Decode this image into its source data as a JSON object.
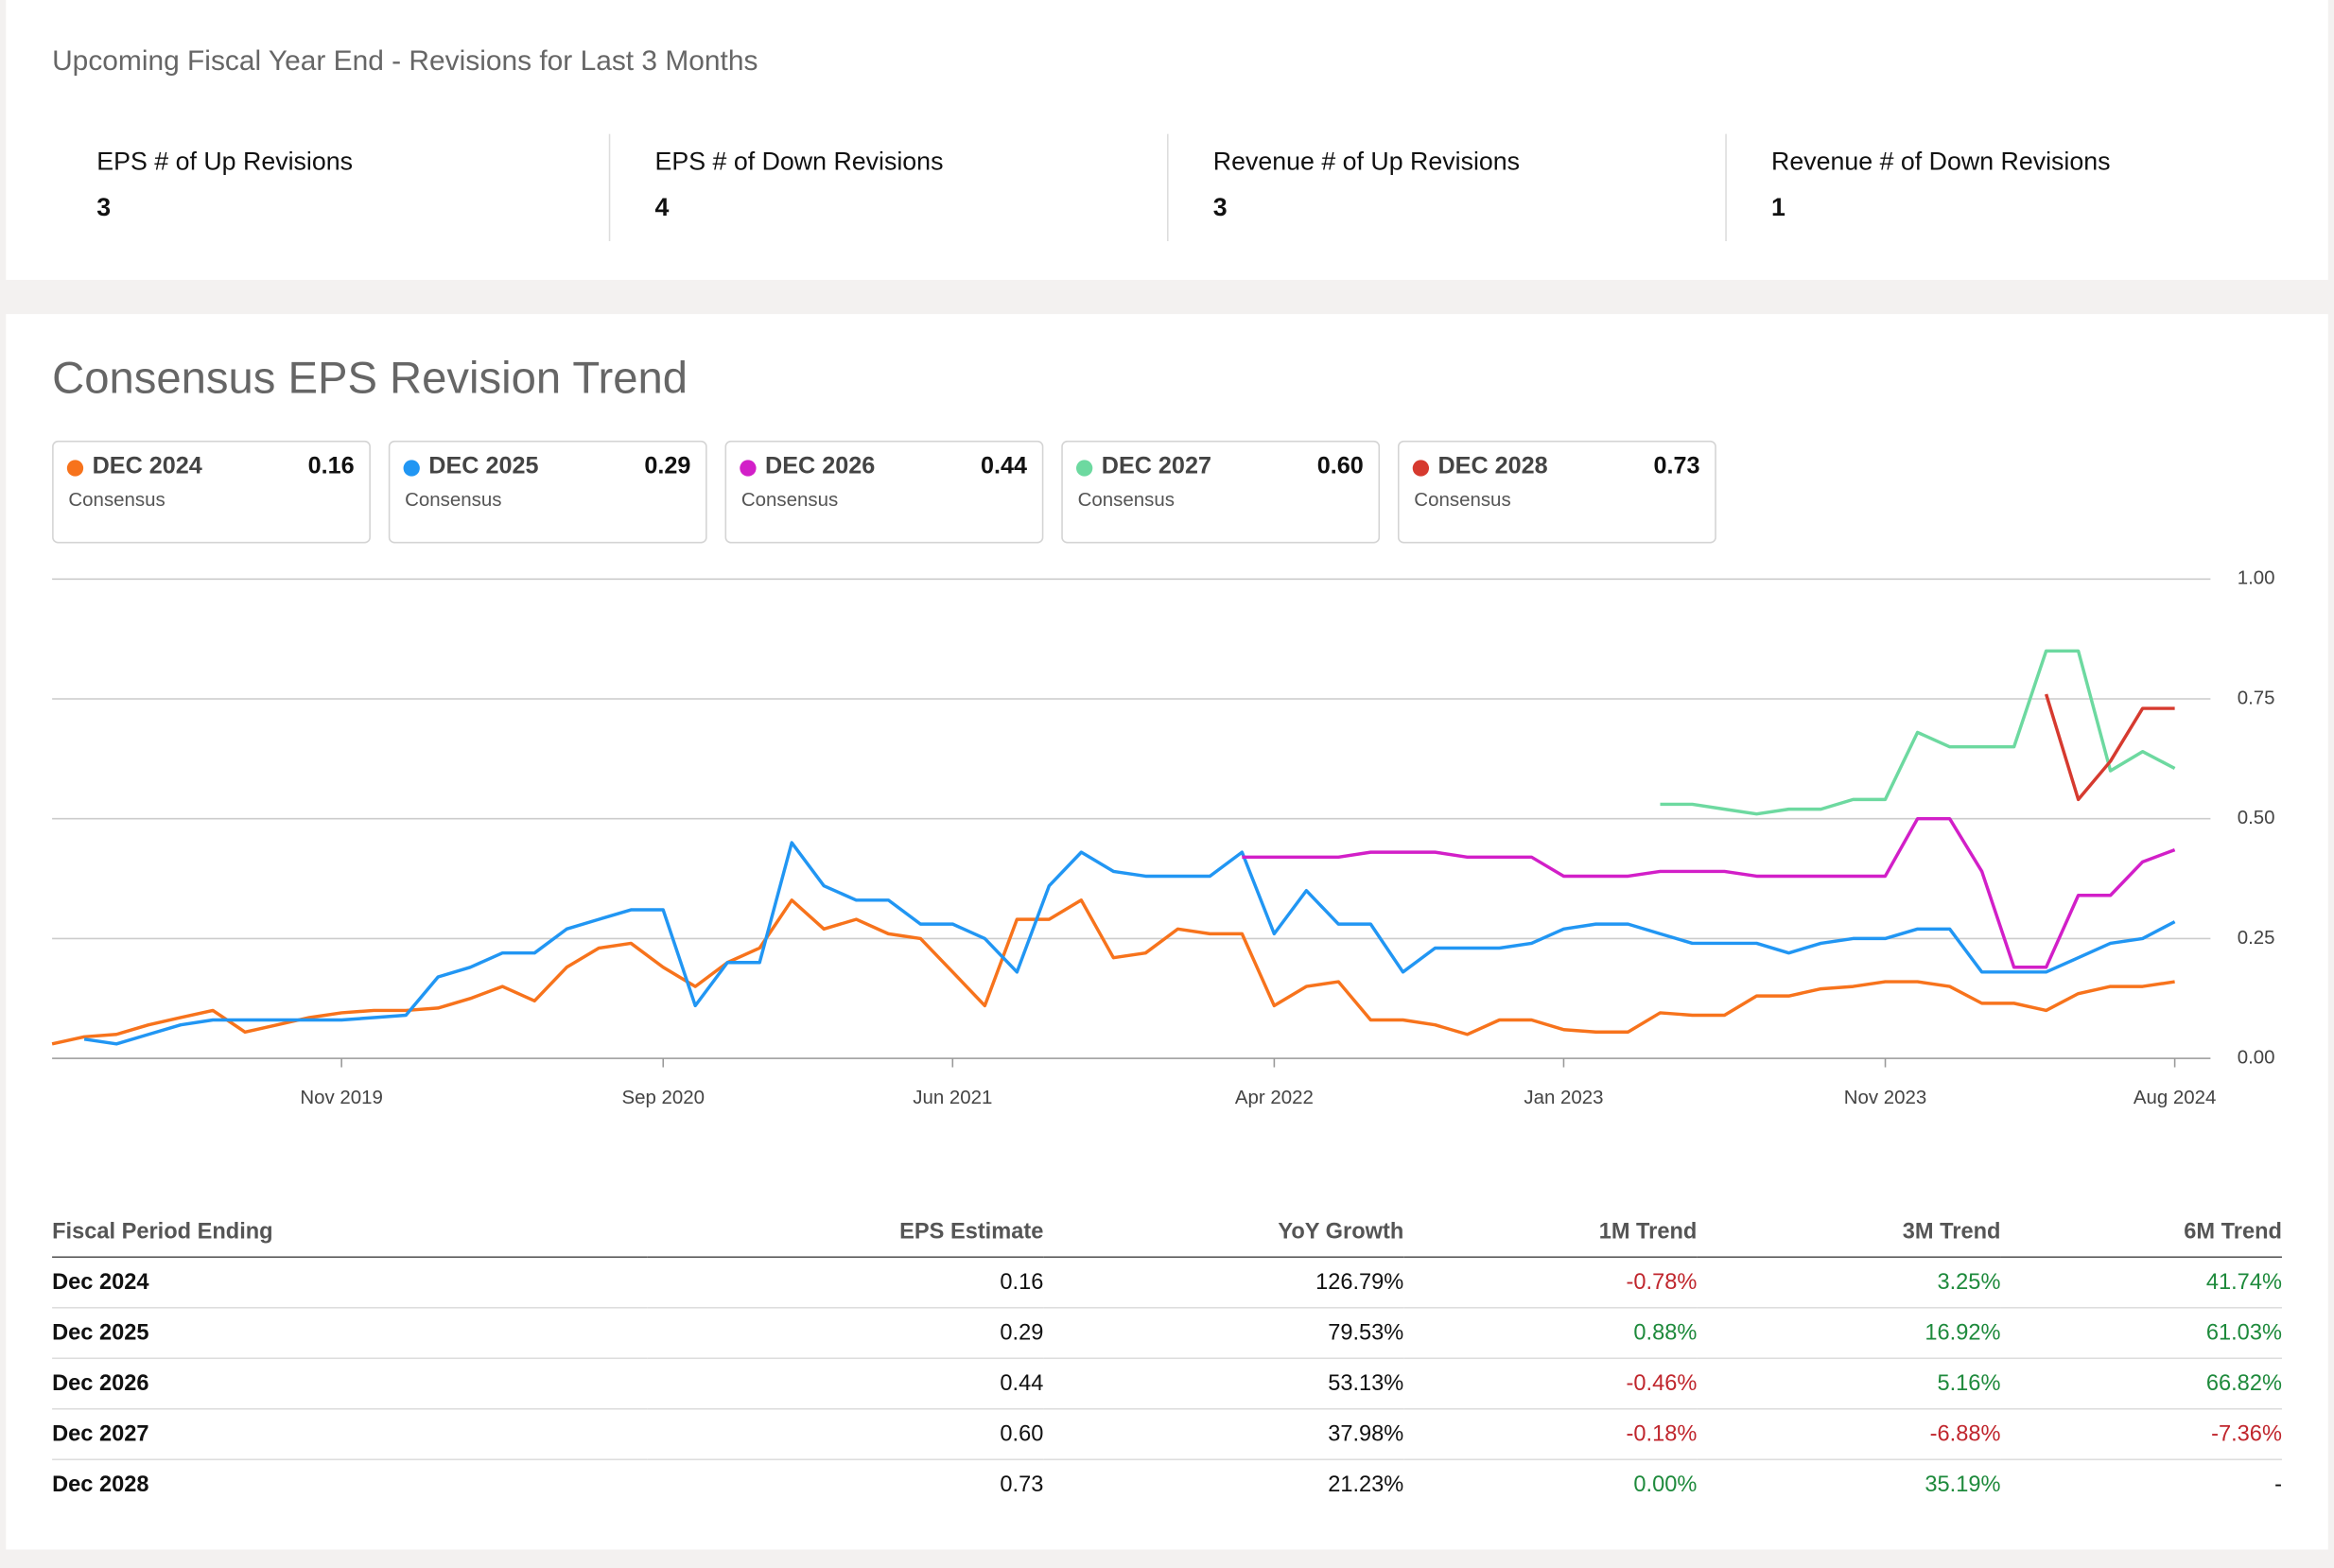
{
  "summary": {
    "title": "Upcoming Fiscal Year End - Revisions for Last 3 Months",
    "items": [
      {
        "label": "EPS # of Up Revisions",
        "value": 3
      },
      {
        "label": "EPS # of Down Revisions",
        "value": 4
      },
      {
        "label": "Revenue # of Up Revisions",
        "value": 3
      },
      {
        "label": "Revenue # of Down Revisions",
        "value": 1
      }
    ]
  },
  "chart_data": {
    "type": "line",
    "title": "Consensus EPS Revision Trend",
    "legend_sublabel": "Consensus",
    "x": [
      "2019-02",
      "2019-03",
      "2019-04",
      "2019-05",
      "2019-06",
      "2019-07",
      "2019-08",
      "2019-09",
      "2019-10",
      "2019-11",
      "2019-12",
      "2020-01",
      "2020-02",
      "2020-03",
      "2020-04",
      "2020-05",
      "2020-06",
      "2020-07",
      "2020-08",
      "2020-09",
      "2020-10",
      "2020-11",
      "2020-12",
      "2021-01",
      "2021-02",
      "2021-03",
      "2021-04",
      "2021-05",
      "2021-06",
      "2021-07",
      "2021-08",
      "2021-09",
      "2021-10",
      "2021-11",
      "2021-12",
      "2022-01",
      "2022-02",
      "2022-03",
      "2022-04",
      "2022-05",
      "2022-06",
      "2022-07",
      "2022-08",
      "2022-09",
      "2022-10",
      "2022-11",
      "2022-12",
      "2023-01",
      "2023-02",
      "2023-03",
      "2023-04",
      "2023-05",
      "2023-06",
      "2023-07",
      "2023-08",
      "2023-09",
      "2023-10",
      "2023-11",
      "2023-12",
      "2024-01",
      "2024-02",
      "2024-03",
      "2024-04",
      "2024-05",
      "2024-06",
      "2024-07",
      "2024-08"
    ],
    "xlim": [
      "2019-02",
      "2024-08"
    ],
    "xticks": [
      {
        "value": "2019-11",
        "label": "Nov 2019"
      },
      {
        "value": "2020-09",
        "label": "Sep 2020"
      },
      {
        "value": "2021-06",
        "label": "Jun 2021"
      },
      {
        "value": "2022-04",
        "label": "Apr 2022"
      },
      {
        "value": "2023-01",
        "label": "Jan 2023"
      },
      {
        "value": "2023-11",
        "label": "Nov 2023"
      },
      {
        "value": "2024-08",
        "label": "Aug 2024"
      }
    ],
    "ylim": [
      0,
      1
    ],
    "yticks": [
      {
        "value": 0,
        "label": "0.00"
      },
      {
        "value": 0.25,
        "label": "0.25"
      },
      {
        "value": 0.5,
        "label": "0.50"
      },
      {
        "value": 0.75,
        "label": "0.75"
      },
      {
        "value": 1,
        "label": "1.00"
      }
    ],
    "grid": true,
    "series": [
      {
        "name": "DEC 2024",
        "color": "#f7731c",
        "last_value": "0.16",
        "values": [
          0.03,
          0.045,
          0.05,
          0.07,
          0.085,
          0.1,
          0.055,
          0.07,
          0.085,
          0.095,
          0.1,
          0.1,
          0.105,
          0.125,
          0.15,
          0.12,
          0.19,
          0.23,
          0.24,
          0.19,
          0.15,
          0.2,
          0.23,
          0.33,
          0.27,
          0.29,
          0.26,
          0.25,
          0.18,
          0.11,
          0.29,
          0.29,
          0.33,
          0.21,
          0.22,
          0.27,
          0.26,
          0.26,
          0.11,
          0.15,
          0.16,
          0.08,
          0.08,
          0.07,
          0.05,
          0.08,
          0.08,
          0.06,
          0.055,
          0.055,
          0.095,
          0.09,
          0.09,
          0.13,
          0.13,
          0.145,
          0.15,
          0.16,
          0.16,
          0.15,
          0.115,
          0.115,
          0.1,
          0.135,
          0.15,
          0.15,
          0.16
        ]
      },
      {
        "name": "DEC 2025",
        "color": "#2196f3",
        "last_value": "0.29",
        "values": [
          null,
          0.04,
          0.03,
          0.05,
          0.07,
          0.08,
          0.08,
          0.08,
          0.08,
          0.08,
          0.085,
          0.09,
          0.17,
          0.19,
          0.22,
          0.22,
          0.27,
          0.29,
          0.31,
          0.31,
          0.11,
          0.2,
          0.2,
          0.45,
          0.36,
          0.33,
          0.33,
          0.28,
          0.28,
          0.25,
          0.18,
          0.36,
          0.43,
          0.39,
          0.38,
          0.38,
          0.38,
          0.43,
          0.26,
          0.35,
          0.28,
          0.28,
          0.18,
          0.23,
          0.23,
          0.23,
          0.24,
          0.27,
          0.28,
          0.28,
          0.26,
          0.24,
          0.24,
          0.24,
          0.22,
          0.24,
          0.25,
          0.25,
          0.27,
          0.27,
          0.18,
          0.18,
          0.18,
          0.21,
          0.24,
          0.25,
          0.285
        ]
      },
      {
        "name": "DEC 2026",
        "color": "#d21fc8",
        "last_value": "0.44",
        "values": [
          null,
          null,
          null,
          null,
          null,
          null,
          null,
          null,
          null,
          null,
          null,
          null,
          null,
          null,
          null,
          null,
          null,
          null,
          null,
          null,
          null,
          null,
          null,
          null,
          null,
          null,
          null,
          null,
          null,
          null,
          null,
          null,
          null,
          null,
          null,
          null,
          null,
          0.42,
          0.42,
          0.42,
          0.42,
          0.43,
          0.43,
          0.43,
          0.42,
          0.42,
          0.42,
          0.38,
          0.38,
          0.38,
          0.39,
          0.39,
          0.39,
          0.38,
          0.38,
          0.38,
          0.38,
          0.38,
          0.5,
          0.5,
          0.39,
          0.19,
          0.19,
          0.34,
          0.34,
          0.41,
          0.435
        ]
      },
      {
        "name": "DEC 2027",
        "color": "#6dd9a0",
        "last_value": "0.60",
        "values": [
          null,
          null,
          null,
          null,
          null,
          null,
          null,
          null,
          null,
          null,
          null,
          null,
          null,
          null,
          null,
          null,
          null,
          null,
          null,
          null,
          null,
          null,
          null,
          null,
          null,
          null,
          null,
          null,
          null,
          null,
          null,
          null,
          null,
          null,
          null,
          null,
          null,
          null,
          null,
          null,
          null,
          null,
          null,
          null,
          null,
          null,
          null,
          null,
          null,
          null,
          0.53,
          0.53,
          0.52,
          0.51,
          0.52,
          0.52,
          0.54,
          0.54,
          0.68,
          0.65,
          0.65,
          0.65,
          0.85,
          0.85,
          0.6,
          0.64,
          0.605
        ]
      },
      {
        "name": "DEC 2028",
        "color": "#d63a2f",
        "last_value": "0.73",
        "values": [
          null,
          null,
          null,
          null,
          null,
          null,
          null,
          null,
          null,
          null,
          null,
          null,
          null,
          null,
          null,
          null,
          null,
          null,
          null,
          null,
          null,
          null,
          null,
          null,
          null,
          null,
          null,
          null,
          null,
          null,
          null,
          null,
          null,
          null,
          null,
          null,
          null,
          null,
          null,
          null,
          null,
          null,
          null,
          null,
          null,
          null,
          null,
          null,
          null,
          null,
          null,
          null,
          null,
          null,
          null,
          null,
          null,
          null,
          null,
          null,
          null,
          null,
          0.76,
          0.54,
          0.62,
          0.73,
          0.73
        ]
      }
    ]
  },
  "table": {
    "columns": [
      "Fiscal Period Ending",
      "EPS Estimate",
      "YoY Growth",
      "1M Trend",
      "3M Trend",
      "6M Trend"
    ],
    "rows": [
      [
        "Dec 2024",
        "0.16",
        "126.79%",
        "-0.78%",
        "3.25%",
        "41.74%"
      ],
      [
        "Dec 2025",
        "0.29",
        "79.53%",
        "0.88%",
        "16.92%",
        "61.03%"
      ],
      [
        "Dec 2026",
        "0.44",
        "53.13%",
        "-0.46%",
        "5.16%",
        "66.82%"
      ],
      [
        "Dec 2027",
        "0.60",
        "37.98%",
        "-0.18%",
        "-6.88%",
        "-7.36%"
      ],
      [
        "Dec 2028",
        "0.73",
        "21.23%",
        "0.00%",
        "35.19%",
        "-"
      ]
    ]
  }
}
